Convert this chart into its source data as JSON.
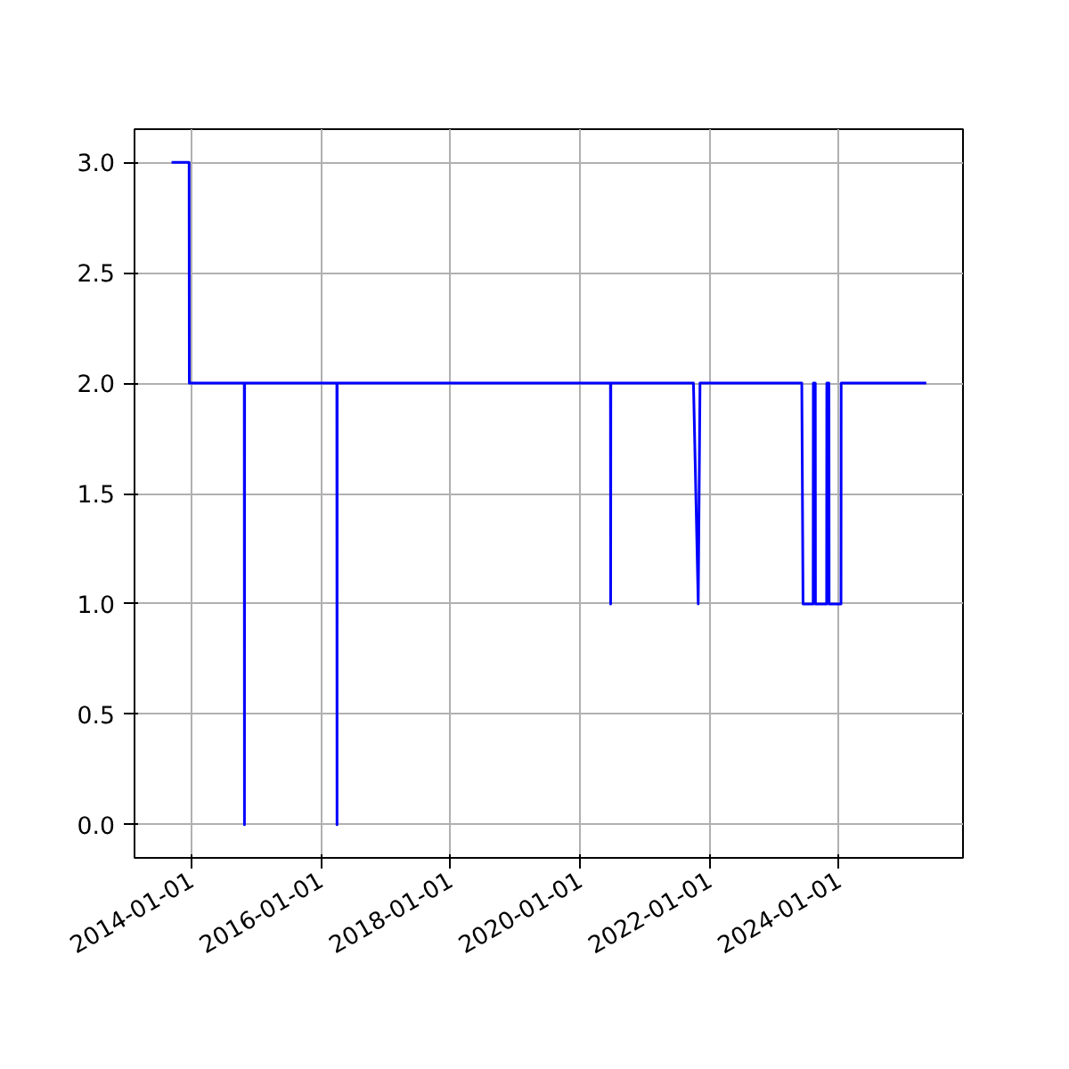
{
  "chart_data": {
    "type": "line",
    "x": [
      "2013-09-12",
      "2013-12-20",
      "2013-12-21",
      "2014-10-27",
      "2014-10-28",
      "2014-10-29",
      "2016-04-01",
      "2016-04-02",
      "2016-04-03",
      "2020-06-22",
      "2020-06-23",
      "2020-06-24",
      "2021-10-03",
      "2021-10-30",
      "2021-11-09",
      "2023-06-06",
      "2023-06-13",
      "2023-08-09",
      "2023-08-10",
      "2023-08-21",
      "2023-08-22",
      "2023-10-24",
      "2023-10-25",
      "2023-11-06",
      "2023-11-07",
      "2024-01-13",
      "2024-01-14",
      "2025-05-08"
    ],
    "series": [
      {
        "color": "#0000ff",
        "values": [
          3,
          3,
          2,
          2,
          0,
          2,
          2,
          0,
          2,
          2,
          1,
          2,
          2,
          1,
          2,
          2,
          1,
          1,
          2,
          2,
          1,
          1,
          2,
          2,
          1,
          1,
          2,
          2
        ]
      }
    ],
    "xlim": [
      "2013-02-15",
      "2025-12-01"
    ],
    "xticks": [
      "2014-01-01",
      "2016-01-01",
      "2018-01-01",
      "2020-01-01",
      "2022-01-01",
      "2024-01-01"
    ],
    "ylim": [
      -0.15,
      3.15
    ],
    "yticks": [
      {
        "value": 0,
        "label": "0.0"
      },
      {
        "value": 0.5,
        "label": "0.5"
      },
      {
        "value": 1,
        "label": "1.0"
      },
      {
        "value": 1.5,
        "label": "1.5"
      },
      {
        "value": 2,
        "label": "2.0"
      },
      {
        "value": 2.5,
        "label": "2.5"
      },
      {
        "value": 3,
        "label": "3.0"
      }
    ],
    "grid": true,
    "marker": "none",
    "line_style": "solid"
  }
}
